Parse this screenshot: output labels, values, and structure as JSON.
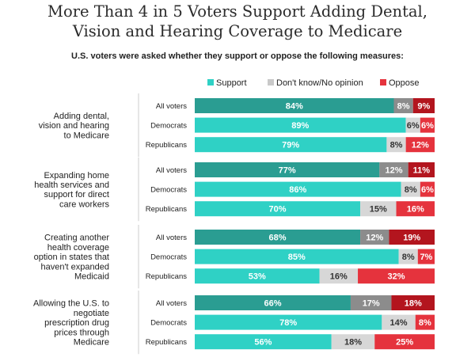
{
  "header": {
    "title_line1": "More Than 4 in 5 Voters Support Adding Dental,",
    "title_line2": "Vision and Hearing Coverage to Medicare",
    "subtitle": "U.S. voters were asked whether they support or oppose the following measures:"
  },
  "chart_data": {
    "type": "bar",
    "stacked": true,
    "orientation": "horizontal",
    "xlim": [
      0,
      100
    ],
    "legend": {
      "position": "top",
      "entries": [
        {
          "name": "Support",
          "color": "#2fd1c5"
        },
        {
          "name": "Don't know/No opinion",
          "color": "#c9c9c9"
        },
        {
          "name": "Oppose",
          "color": "#e5333d"
        }
      ]
    },
    "colors": {
      "support_all": "#2a9d92",
      "support": "#2fd1c5",
      "dk_all": "#8c8c8c",
      "dk": "#d7d7d7",
      "oppose_all": "#b3151e",
      "oppose": "#e5333d"
    },
    "groups": [
      {
        "label_lines": [
          "Adding dental,",
          "vision and hearing",
          "to Medicare"
        ],
        "rows": [
          {
            "label": "All voters",
            "support": 84,
            "dont_know": 8,
            "oppose": 9
          },
          {
            "label": "Democrats",
            "support": 89,
            "dont_know": 6,
            "oppose": 6
          },
          {
            "label": "Republicans",
            "support": 79,
            "dont_know": 8,
            "oppose": 12
          }
        ]
      },
      {
        "label_lines": [
          "Expanding home",
          "health services and",
          "support for direct",
          "care workers"
        ],
        "rows": [
          {
            "label": "All voters",
            "support": 77,
            "dont_know": 12,
            "oppose": 11
          },
          {
            "label": "Democrats",
            "support": 86,
            "dont_know": 8,
            "oppose": 6
          },
          {
            "label": "Republicans",
            "support": 70,
            "dont_know": 15,
            "oppose": 16
          }
        ]
      },
      {
        "label_lines": [
          "Creating another",
          "health coverage",
          "option in states that",
          "haven't expanded",
          "Medicaid"
        ],
        "rows": [
          {
            "label": "All voters",
            "support": 68,
            "dont_know": 12,
            "oppose": 19
          },
          {
            "label": "Democrats",
            "support": 85,
            "dont_know": 8,
            "oppose": 7
          },
          {
            "label": "Republicans",
            "support": 53,
            "dont_know": 16,
            "oppose": 32
          }
        ]
      },
      {
        "label_lines": [
          "Allowing the U.S. to",
          "negotiate",
          "prescription drug",
          "prices through",
          "Medicare"
        ],
        "rows": [
          {
            "label": "All voters",
            "support": 66,
            "dont_know": 17,
            "oppose": 18
          },
          {
            "label": "Democrats",
            "support": 78,
            "dont_know": 14,
            "oppose": 8
          },
          {
            "label": "Republicans",
            "support": 56,
            "dont_know": 18,
            "oppose": 25
          }
        ]
      }
    ]
  }
}
